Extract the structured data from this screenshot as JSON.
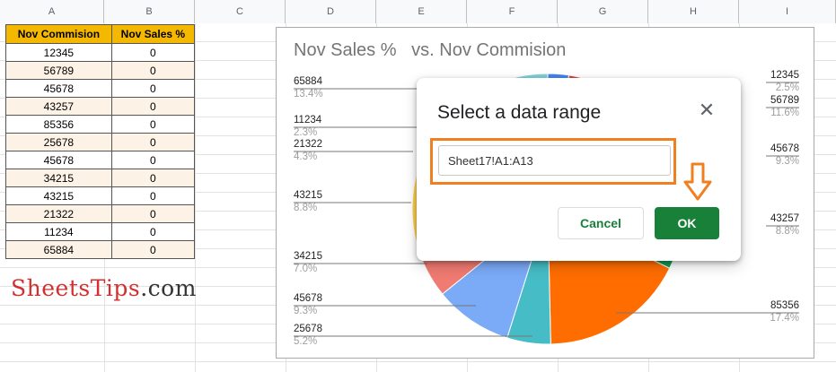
{
  "columns": [
    "A",
    "B",
    "C",
    "D",
    "E",
    "F",
    "G",
    "H",
    "I"
  ],
  "table": {
    "headers": [
      "Nov Commision",
      "Nov Sales %"
    ],
    "rows": [
      [
        "12345",
        "0"
      ],
      [
        "56789",
        "0"
      ],
      [
        "45678",
        "0"
      ],
      [
        "43257",
        "0"
      ],
      [
        "85356",
        "0"
      ],
      [
        "25678",
        "0"
      ],
      [
        "45678",
        "0"
      ],
      [
        "34215",
        "0"
      ],
      [
        "43215",
        "0"
      ],
      [
        "21322",
        "0"
      ],
      [
        "11234",
        "0"
      ],
      [
        "65884",
        "0"
      ]
    ]
  },
  "watermark": {
    "brand": "SheetsTips",
    "tld": ".com"
  },
  "chart_data": {
    "type": "pie",
    "title": "Nov Sales %   vs. Nov Commision",
    "slices": [
      {
        "name": "12345",
        "value": 2.5,
        "label": "2.5%",
        "color": "#4285f4"
      },
      {
        "name": "56789",
        "value": 11.6,
        "label": "11.6%",
        "color": "#db4437"
      },
      {
        "name": "45678",
        "value": 9.3,
        "label": "9.3%",
        "color": "#f4b400"
      },
      {
        "name": "43257",
        "value": 8.8,
        "label": "8.8%",
        "color": "#0f9d58"
      },
      {
        "name": "85356",
        "value": 17.4,
        "label": "17.4%",
        "color": "#ff6d01"
      },
      {
        "name": "25678",
        "value": 5.2,
        "label": "5.2%",
        "color": "#46bdc6"
      },
      {
        "name": "45678",
        "value": 9.3,
        "label": "9.3%",
        "color": "#7baaf7"
      },
      {
        "name": "34215",
        "value": 7.0,
        "label": "7.0%",
        "color": "#f07b72"
      },
      {
        "name": "43215",
        "value": 8.8,
        "label": "8.8%",
        "color": "#fcd04f"
      },
      {
        "name": "21322",
        "value": 4.3,
        "label": "4.3%",
        "color": "#71c287"
      },
      {
        "name": "11234",
        "value": 2.3,
        "label": "2.3%",
        "color": "#ff994d"
      },
      {
        "name": "65884",
        "value": 13.4,
        "label": "13.4%",
        "color": "#7ed1d7"
      }
    ]
  },
  "dialog": {
    "title": "Select a data range",
    "range_value": "Sheet17!A1:A13",
    "cancel_label": "Cancel",
    "ok_label": "OK"
  }
}
